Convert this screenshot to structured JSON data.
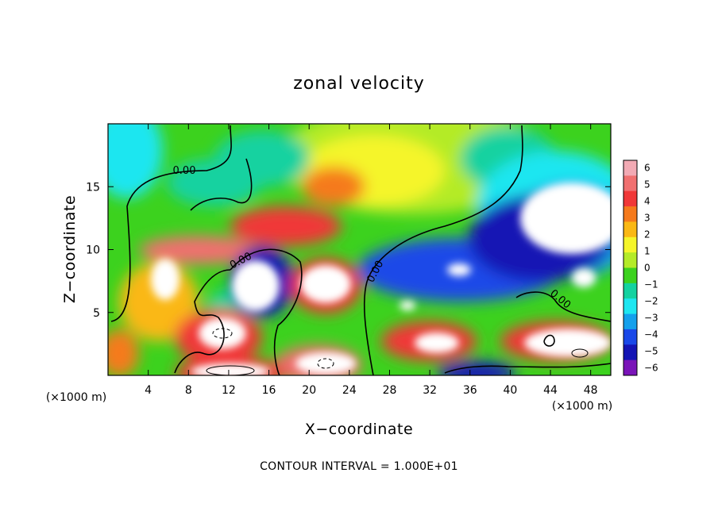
{
  "chart_data": {
    "type": "heatmap",
    "title": "zonal velocity",
    "xlabel": "X−coordinate",
    "ylabel": "Z−coordinate",
    "x_unit": "(×1000 m)",
    "z_unit": "(×1000 m)",
    "xlim": [
      0,
      50
    ],
    "ylim": [
      0,
      20
    ],
    "x_ticks": [
      4,
      8,
      12,
      16,
      20,
      24,
      28,
      32,
      36,
      40,
      44,
      48
    ],
    "x_tick_labels": [
      "4",
      "8",
      "12",
      "16",
      "20",
      "24",
      "28",
      "32",
      "36",
      "40",
      "44",
      "48"
    ],
    "y_ticks": [
      5,
      10,
      15
    ],
    "y_tick_labels": [
      "5",
      "10",
      "15"
    ],
    "colorbar": {
      "min": -6,
      "max": 6,
      "tick_values": [
        6,
        5,
        4,
        3,
        2,
        1,
        0,
        -1,
        -2,
        -3,
        -4,
        -5,
        -6
      ],
      "tick_labels": [
        "6",
        "5",
        "4",
        "3",
        "2",
        "1",
        "0",
        "−1",
        "−2",
        "−3",
        "−4",
        "−5",
        "−6"
      ],
      "colors": [
        "#f2aab4",
        "#f07070",
        "#f03838",
        "#f57a1c",
        "#fab814",
        "#f5f52a",
        "#b4eb28",
        "#3cd21e",
        "#14d2a0",
        "#1ee6f0",
        "#14a0ec",
        "#1a48e8",
        "#1414b4",
        "#7a14b8"
      ]
    },
    "contour_labels": [
      "0.00",
      "0.00",
      "0.00",
      "0.00"
    ],
    "footer": "CONTOUR INTERVAL = 1.000E+01",
    "grid": false
  },
  "icons": {
    "colorbar": "colorbar-legend"
  }
}
